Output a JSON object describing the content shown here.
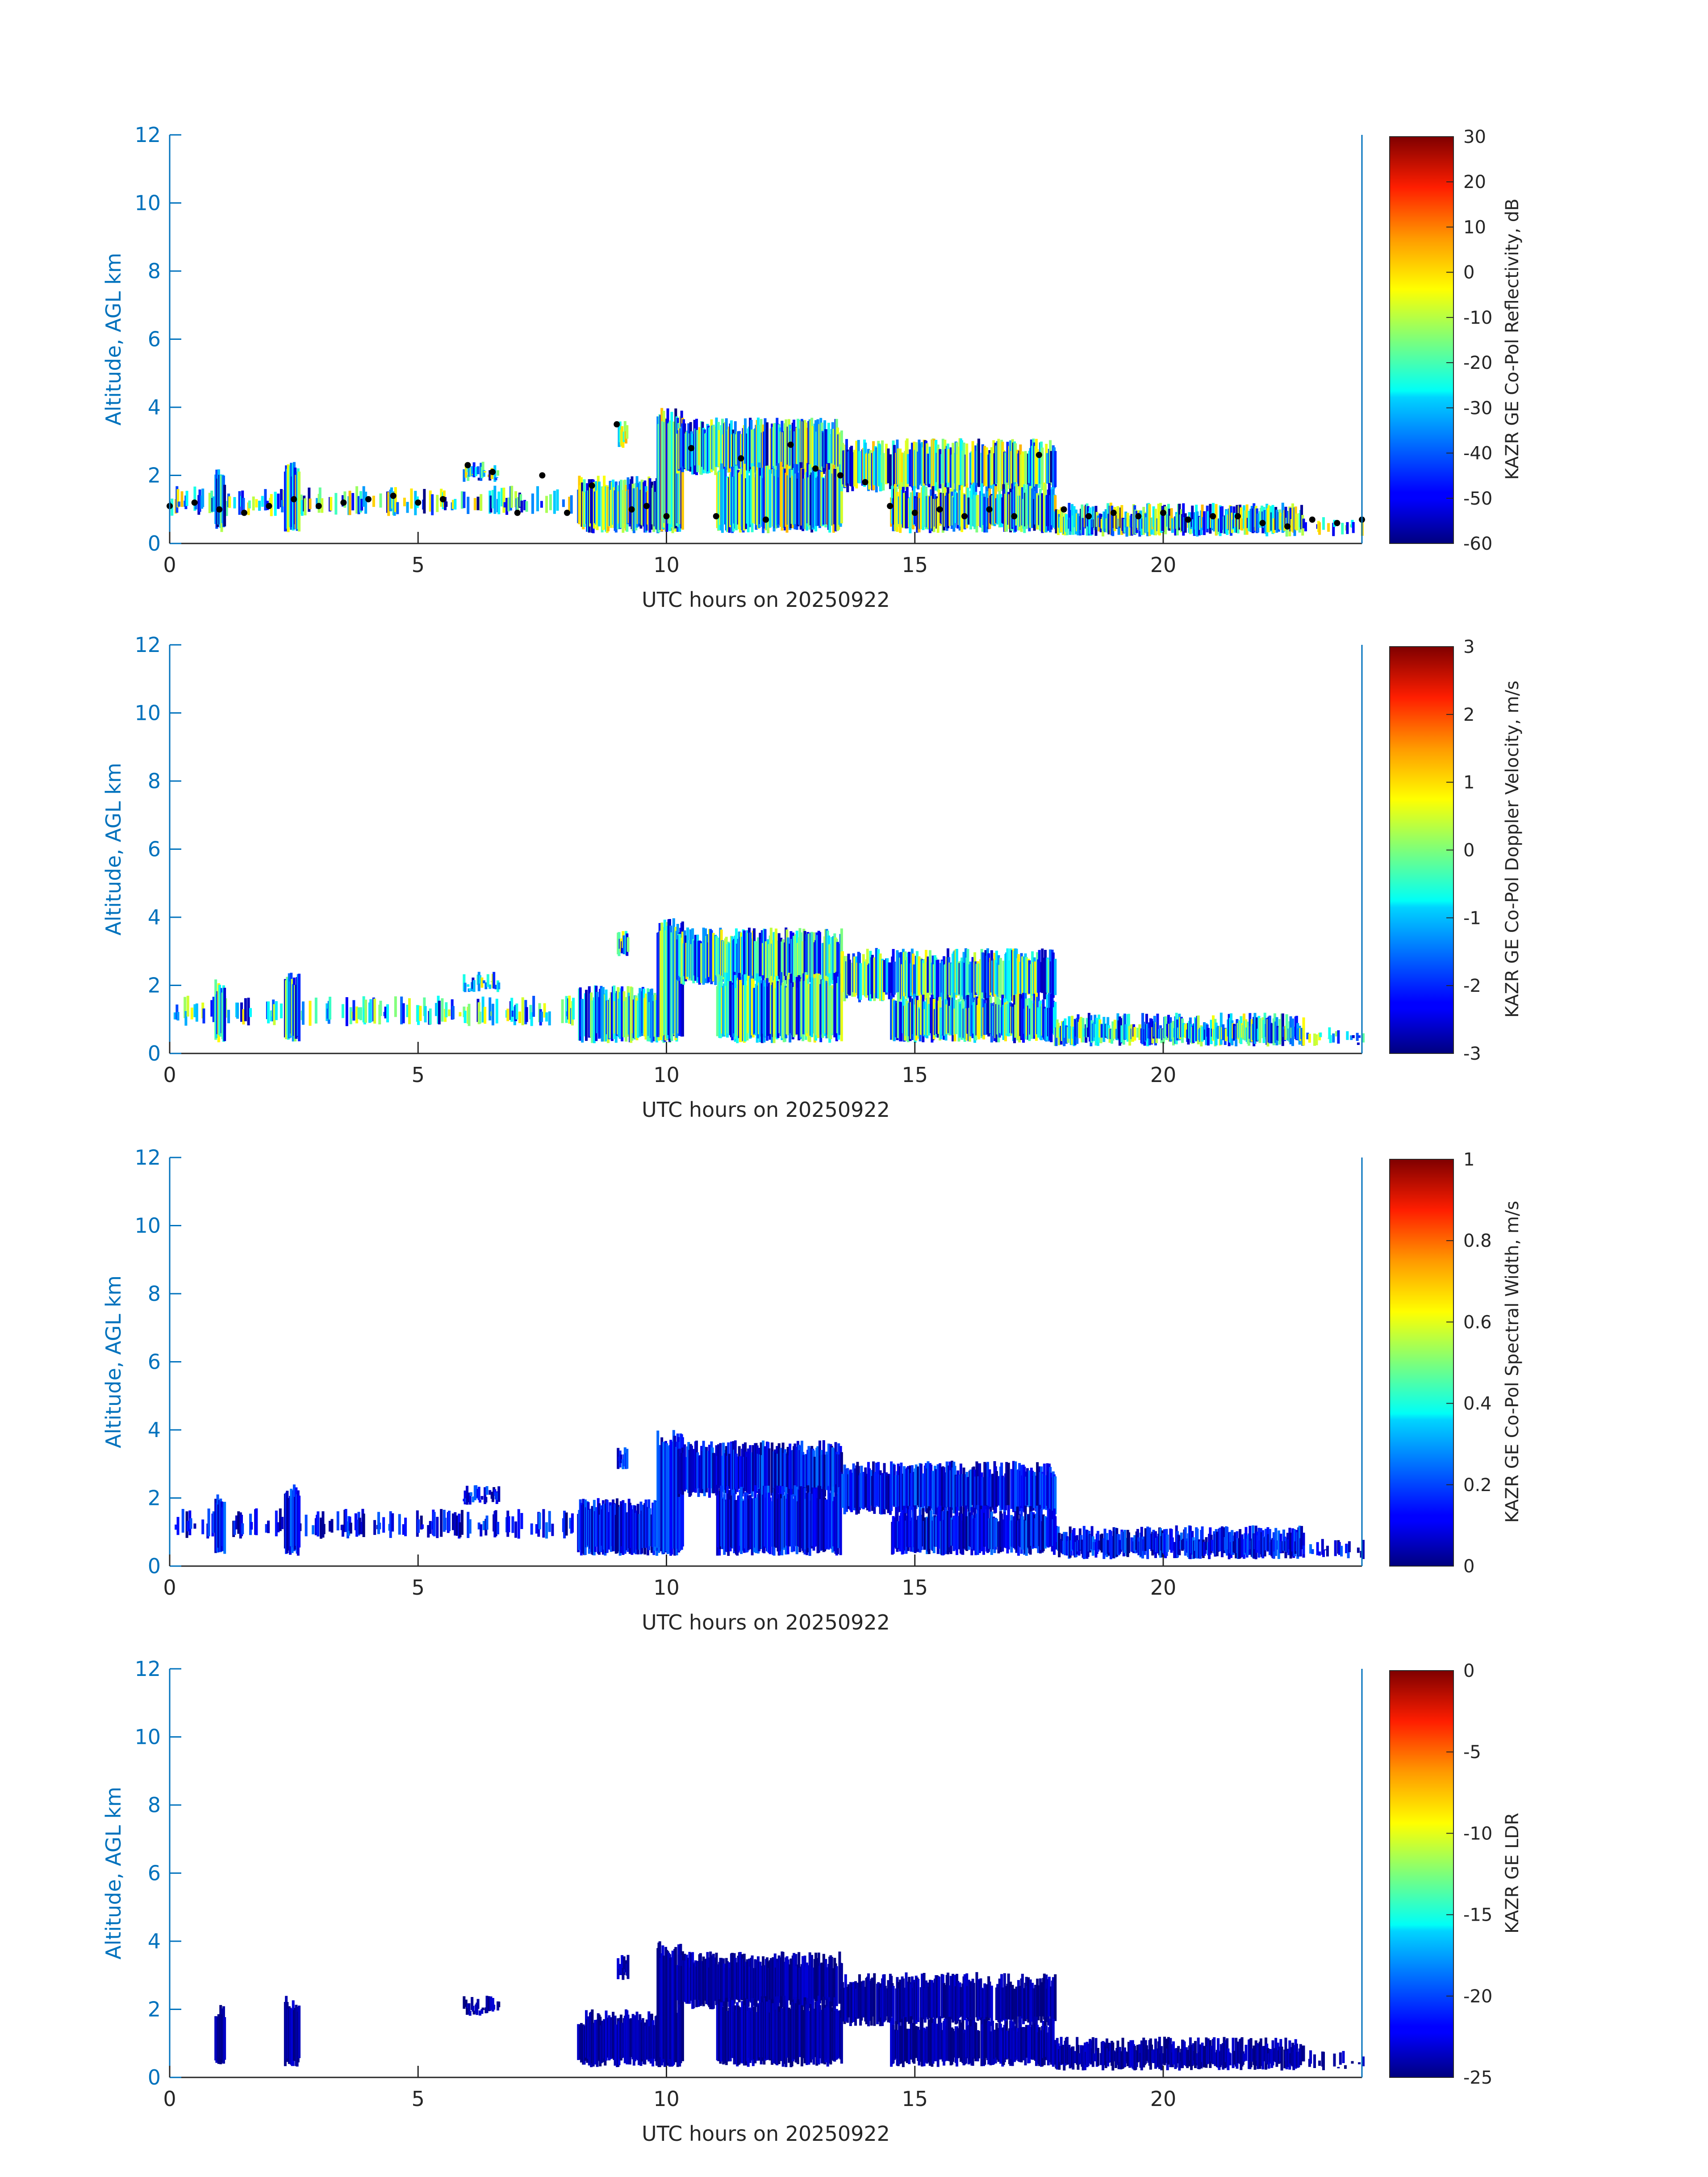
{
  "chart_data": [
    {
      "type": "heatmap",
      "xlabel": "UTC hours on 20250922",
      "ylabel": "Altitude, AGL km",
      "xlim": [
        0,
        24
      ],
      "ylim": [
        0,
        12
      ],
      "xticks": [
        "0",
        "5",
        "10",
        "15",
        "20"
      ],
      "yticks": [
        "0",
        "2",
        "4",
        "6",
        "8",
        "10",
        "12"
      ],
      "colorbar": {
        "label": "KAZR GE Co-Pol Reflectivity, dB",
        "min": -60,
        "max": 30,
        "ticks": [
          "-60",
          "-50",
          "-40",
          "-30",
          "-20",
          "-10",
          "0",
          "10",
          "20",
          "30"
        ],
        "colormap": "jet"
      },
      "cloud_base_markers": {
        "color": "#000000",
        "points": [
          [
            0,
            1.1
          ],
          [
            0.5,
            1.2
          ],
          [
            1,
            1.0
          ],
          [
            1.5,
            0.9
          ],
          [
            2,
            1.1
          ],
          [
            2.5,
            1.3
          ],
          [
            3,
            1.1
          ],
          [
            3.5,
            1.2
          ],
          [
            4,
            1.3
          ],
          [
            4.5,
            1.4
          ],
          [
            5,
            1.2
          ],
          [
            5.5,
            1.3
          ],
          [
            6,
            2.3
          ],
          [
            6.5,
            2.1
          ],
          [
            7,
            0.9
          ],
          [
            7.5,
            2.0
          ],
          [
            8,
            0.9
          ],
          [
            8.5,
            1.7
          ],
          [
            9,
            3.5
          ],
          [
            9.3,
            1.0
          ],
          [
            9.6,
            1.1
          ],
          [
            10,
            0.8
          ],
          [
            10.5,
            2.8
          ],
          [
            11,
            0.8
          ],
          [
            11.5,
            2.5
          ],
          [
            12,
            0.7
          ],
          [
            12.5,
            2.9
          ],
          [
            13,
            2.2
          ],
          [
            13.5,
            2.0
          ],
          [
            14,
            1.8
          ],
          [
            14.5,
            1.1
          ],
          [
            15,
            0.9
          ],
          [
            15.5,
            1.0
          ],
          [
            16,
            0.8
          ],
          [
            16.5,
            1.0
          ],
          [
            17,
            0.8
          ],
          [
            17.5,
            2.6
          ],
          [
            18,
            1.0
          ],
          [
            18.5,
            0.8
          ],
          [
            19,
            0.9
          ],
          [
            19.5,
            0.8
          ],
          [
            20,
            0.9
          ],
          [
            20.5,
            0.7
          ],
          [
            21,
            0.8
          ],
          [
            21.5,
            0.8
          ],
          [
            22,
            0.6
          ],
          [
            22.5,
            0.5
          ],
          [
            23,
            0.7
          ],
          [
            23.5,
            0.6
          ],
          [
            24,
            0.7
          ]
        ]
      }
    },
    {
      "type": "heatmap",
      "xlabel": "UTC hours on 20250922",
      "ylabel": "Altitude, AGL km",
      "xlim": [
        0,
        24
      ],
      "ylim": [
        0,
        12
      ],
      "xticks": [
        "0",
        "5",
        "10",
        "15",
        "20"
      ],
      "yticks": [
        "0",
        "2",
        "4",
        "6",
        "8",
        "10",
        "12"
      ],
      "colorbar": {
        "label": "KAZR GE Co-Pol Doppler Velocity, m/s",
        "min": -3,
        "max": 3,
        "ticks": [
          "-3",
          "-2",
          "-1",
          "0",
          "1",
          "2",
          "3"
        ],
        "colormap": "jet"
      }
    },
    {
      "type": "heatmap",
      "xlabel": "UTC hours on 20250922",
      "ylabel": "Altitude, AGL km",
      "xlim": [
        0,
        24
      ],
      "ylim": [
        0,
        12
      ],
      "xticks": [
        "0",
        "5",
        "10",
        "15",
        "20"
      ],
      "yticks": [
        "0",
        "2",
        "4",
        "6",
        "8",
        "10",
        "12"
      ],
      "colorbar": {
        "label": "KAZR GE Co-Pol Spectral Width, m/s",
        "min": 0,
        "max": 1,
        "ticks": [
          "0",
          "0.2",
          "0.4",
          "0.6",
          "0.8",
          "1"
        ],
        "colormap": "jet"
      }
    },
    {
      "type": "heatmap",
      "xlabel": "UTC hours on 20250922",
      "ylabel": "Altitude, AGL km",
      "xlim": [
        0,
        24
      ],
      "ylim": [
        0,
        12
      ],
      "xticks": [
        "0",
        "5",
        "10",
        "15",
        "20"
      ],
      "yticks": [
        "0",
        "2",
        "4",
        "6",
        "8",
        "10",
        "12"
      ],
      "colorbar": {
        "label": "KAZR GE LDR",
        "min": -25,
        "max": 0,
        "ticks": [
          "-25",
          "-20",
          "-15",
          "-10",
          "-5",
          "0"
        ],
        "colormap": "jet"
      }
    }
  ],
  "colors": {
    "axis": "#0072BD",
    "text": "#262626",
    "background": "#ffffff"
  }
}
